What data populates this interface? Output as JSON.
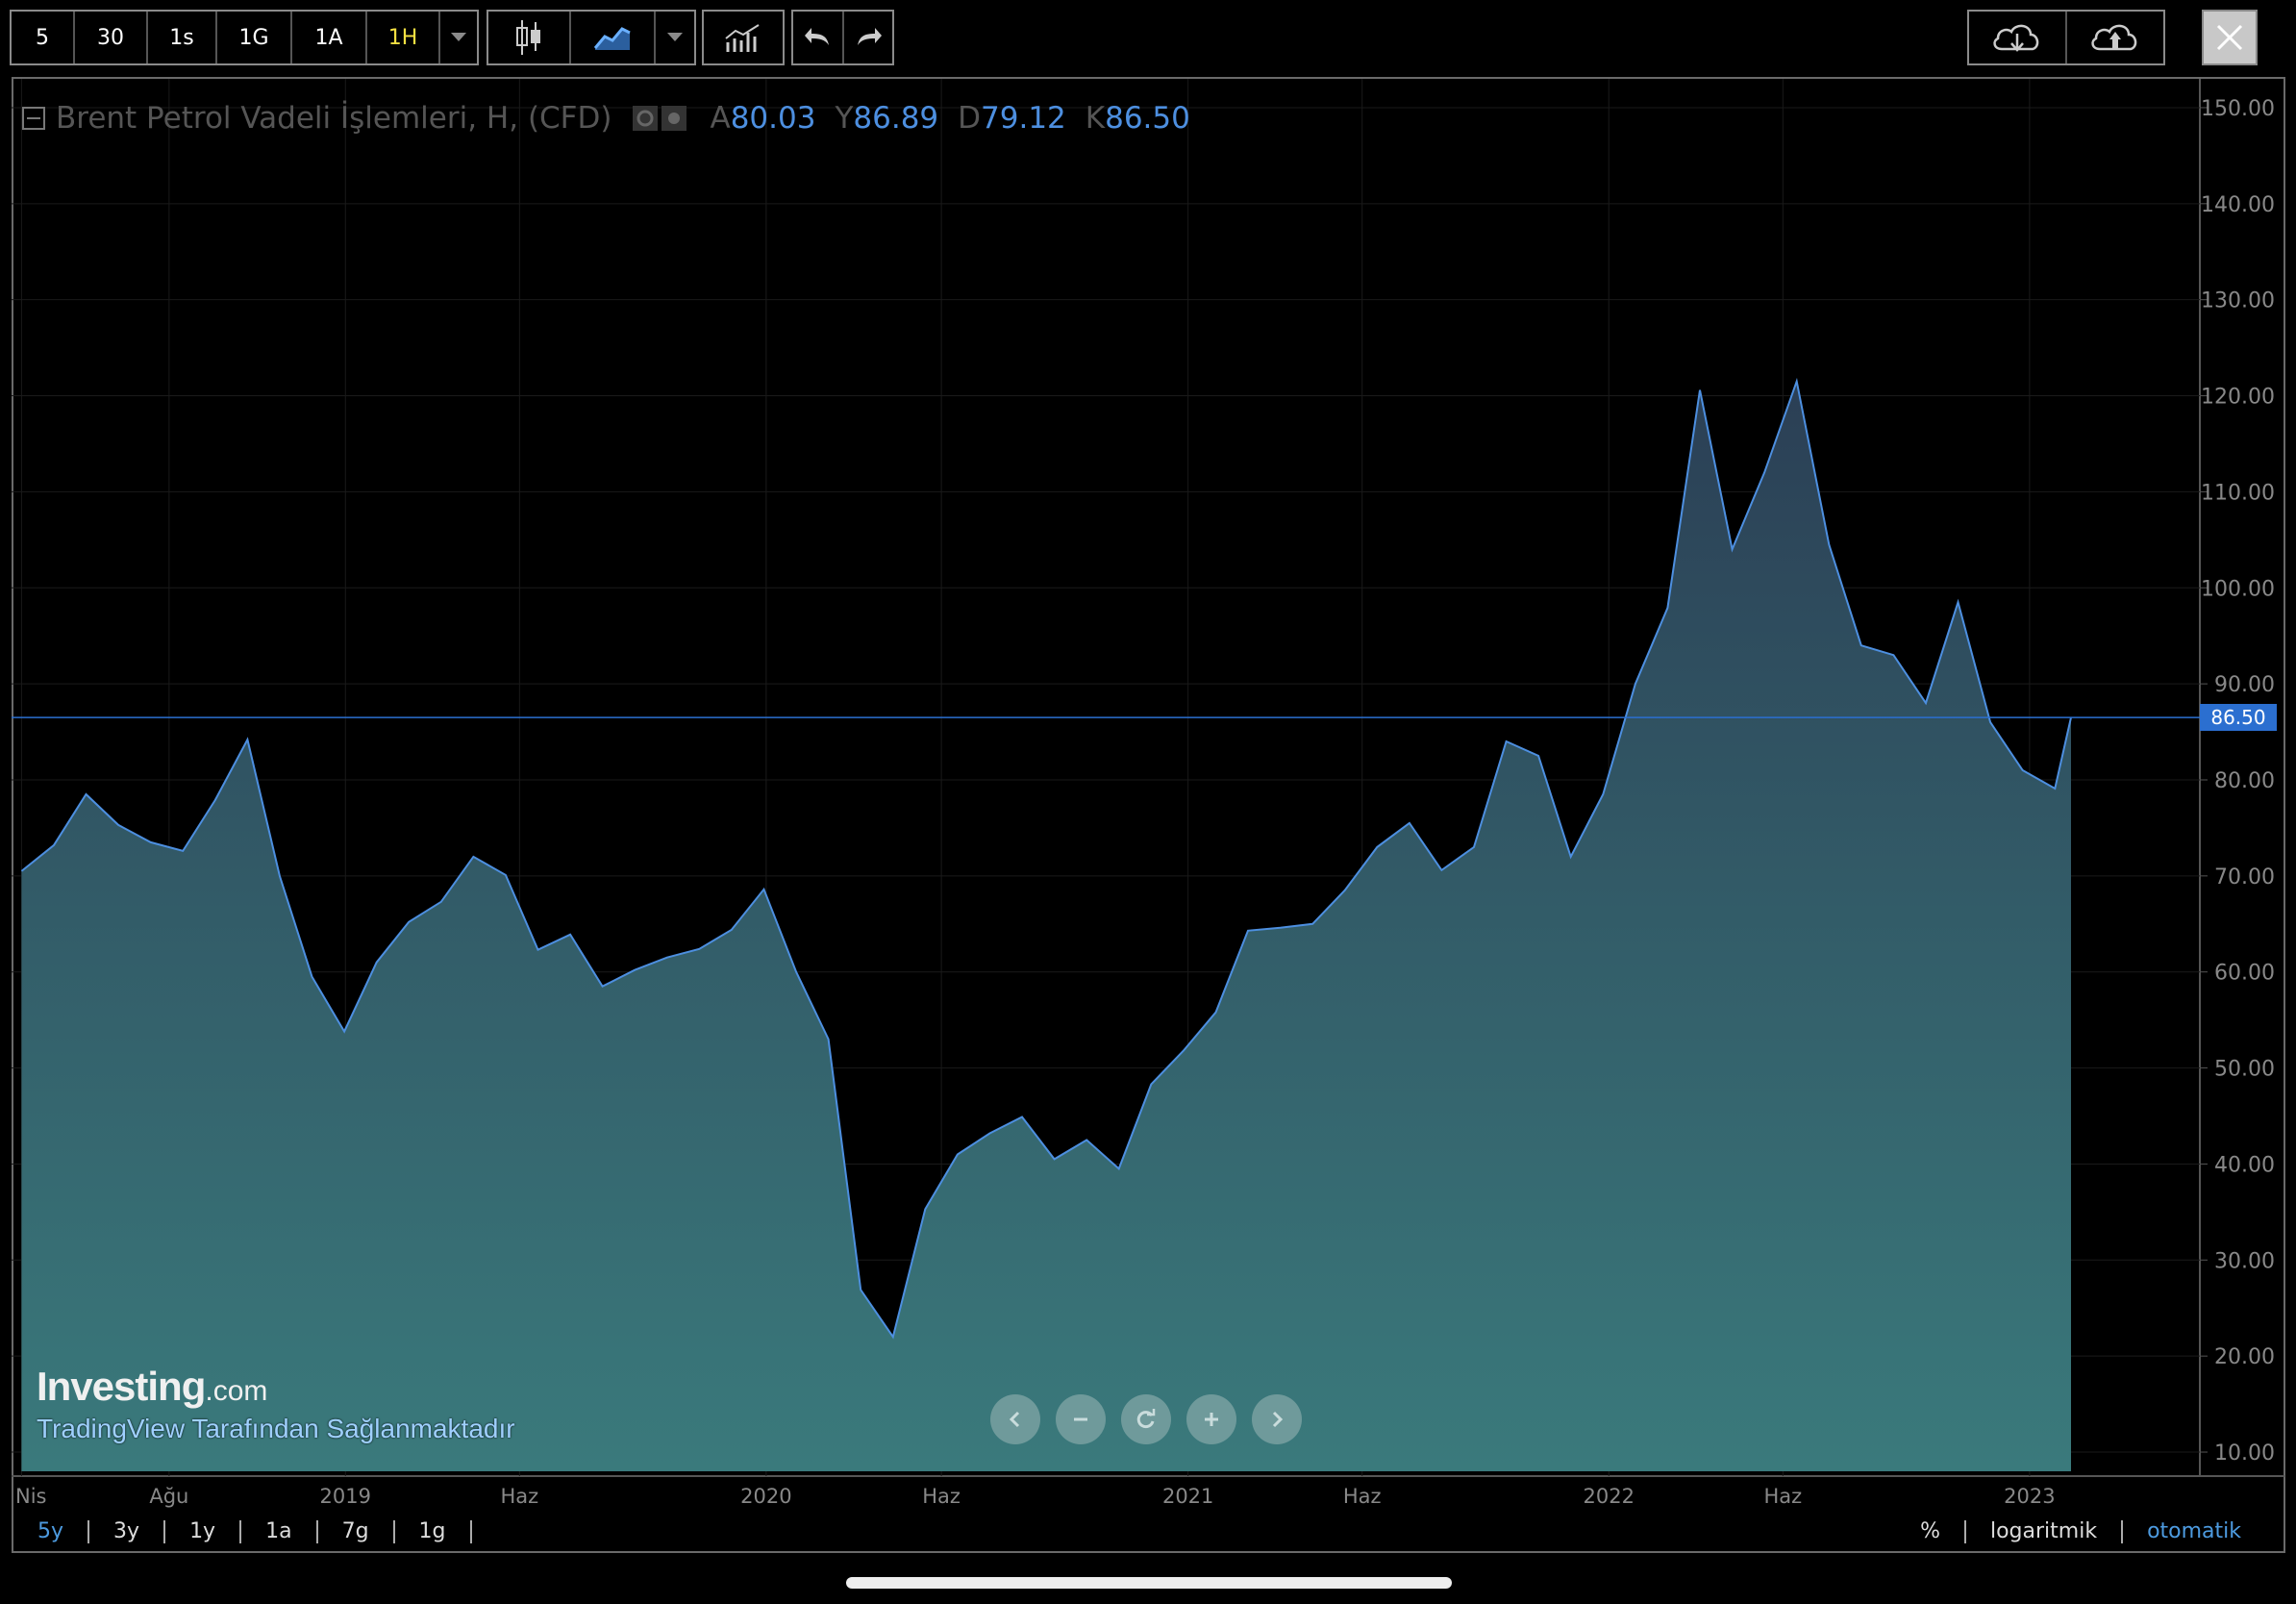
{
  "toolbar": {
    "intervals": [
      "5",
      "30",
      "1s",
      "1G",
      "1A",
      "1H"
    ],
    "active_interval": "1H",
    "icons": [
      "chevron-down-icon",
      "candlestick-icon",
      "area-chart-icon",
      "chevron-down-icon",
      "indicators-icon",
      "undo-icon",
      "redo-icon",
      "cloud-download-icon",
      "cloud-upload-icon",
      "close-icon"
    ]
  },
  "legend": {
    "name": "Brent Petrol Vadeli İşlemleri, H, (CFD)",
    "open_label": "A",
    "open": "80.03",
    "high_label": "Y",
    "high": "86.89",
    "low_label": "D",
    "low": "79.12",
    "close_label": "K",
    "close": "86.50"
  },
  "branding": {
    "logo_main": "Investing",
    "logo_suffix": ".com",
    "provider": "TradingView Tarafından Sağlanmaktadır"
  },
  "ranges": [
    "5y",
    "3y",
    "1y",
    "1a",
    "7g",
    "1g"
  ],
  "active_range": "5y",
  "options": {
    "percent": "%",
    "log": "logaritmik",
    "auto": "otomatik"
  },
  "colors": {
    "line": "#4d8fe0",
    "fill_top": "#2c4457",
    "fill_bottom": "#3a7a7c",
    "price_tag": "#2b6fd0"
  },
  "chart_data": {
    "type": "area",
    "title": "",
    "ylim": [
      8,
      153
    ],
    "y_ticks": [
      "10.00",
      "20.00",
      "30.00",
      "40.00",
      "50.00",
      "60.00",
      "70.00",
      "80.00",
      "90.00",
      "100.00",
      "110.00",
      "120.00",
      "130.00",
      "140.00",
      "150.00"
    ],
    "x_ticks": [
      "Nis",
      "Ağu",
      "2019",
      "Haz",
      "2020",
      "Haz",
      "2021",
      "Haz",
      "2022",
      "Haz",
      "2023"
    ],
    "last_price": "86.50",
    "x": [
      "2018-03-26",
      "2018-04-23",
      "2018-05-21",
      "2018-06-18",
      "2018-07-16",
      "2018-08-13",
      "2018-09-10",
      "2018-10-08",
      "2018-11-05",
      "2018-12-03",
      "2018-12-31",
      "2019-01-28",
      "2019-02-25",
      "2019-03-25",
      "2019-04-22",
      "2019-05-20",
      "2019-06-17",
      "2019-07-15",
      "2019-08-12",
      "2019-09-09",
      "2019-10-07",
      "2019-11-04",
      "2019-12-02",
      "2019-12-30",
      "2020-01-27",
      "2020-02-24",
      "2020-03-23",
      "2020-04-20",
      "2020-05-18",
      "2020-06-15",
      "2020-07-13",
      "2020-08-10",
      "2020-09-07",
      "2020-10-05",
      "2020-11-02",
      "2020-11-30",
      "2020-12-28",
      "2021-01-25",
      "2021-02-22",
      "2021-03-22",
      "2021-04-19",
      "2021-05-17",
      "2021-06-14",
      "2021-07-12",
      "2021-08-09",
      "2021-09-06",
      "2021-10-04",
      "2021-11-01",
      "2021-11-29",
      "2021-12-27",
      "2022-01-24",
      "2022-02-21",
      "2022-03-21",
      "2022-04-18",
      "2022-05-16",
      "2022-06-13",
      "2022-07-11",
      "2022-08-08",
      "2022-09-05",
      "2022-10-03",
      "2022-10-31",
      "2022-11-28",
      "2022-12-26",
      "2023-01-23",
      "2023-02-06"
    ],
    "series": [
      {
        "values": [
          70.5,
          73.2,
          78.5,
          75.3,
          73.5,
          72.6,
          77.9,
          84.2,
          70.0,
          59.5,
          53.8,
          61.0,
          65.2,
          67.3,
          72.0,
          70.1,
          62.3,
          63.9,
          58.5,
          60.2,
          61.5,
          62.4,
          64.4,
          68.6,
          60.0,
          53.0,
          26.9,
          22.0,
          35.3,
          41.0,
          43.2,
          44.9,
          40.5,
          42.5,
          39.5,
          48.3,
          51.8,
          55.8,
          64.3,
          64.6,
          65.0,
          68.5,
          73.0,
          75.5,
          70.6,
          73.0,
          84.0,
          82.5,
          72.0,
          78.5,
          90.0,
          97.9,
          120.6,
          104.0,
          112.0,
          121.5,
          104.5,
          94.0,
          93.0,
          88.0,
          98.5,
          86.0,
          81.0,
          79.1,
          86.5
        ]
      }
    ]
  }
}
